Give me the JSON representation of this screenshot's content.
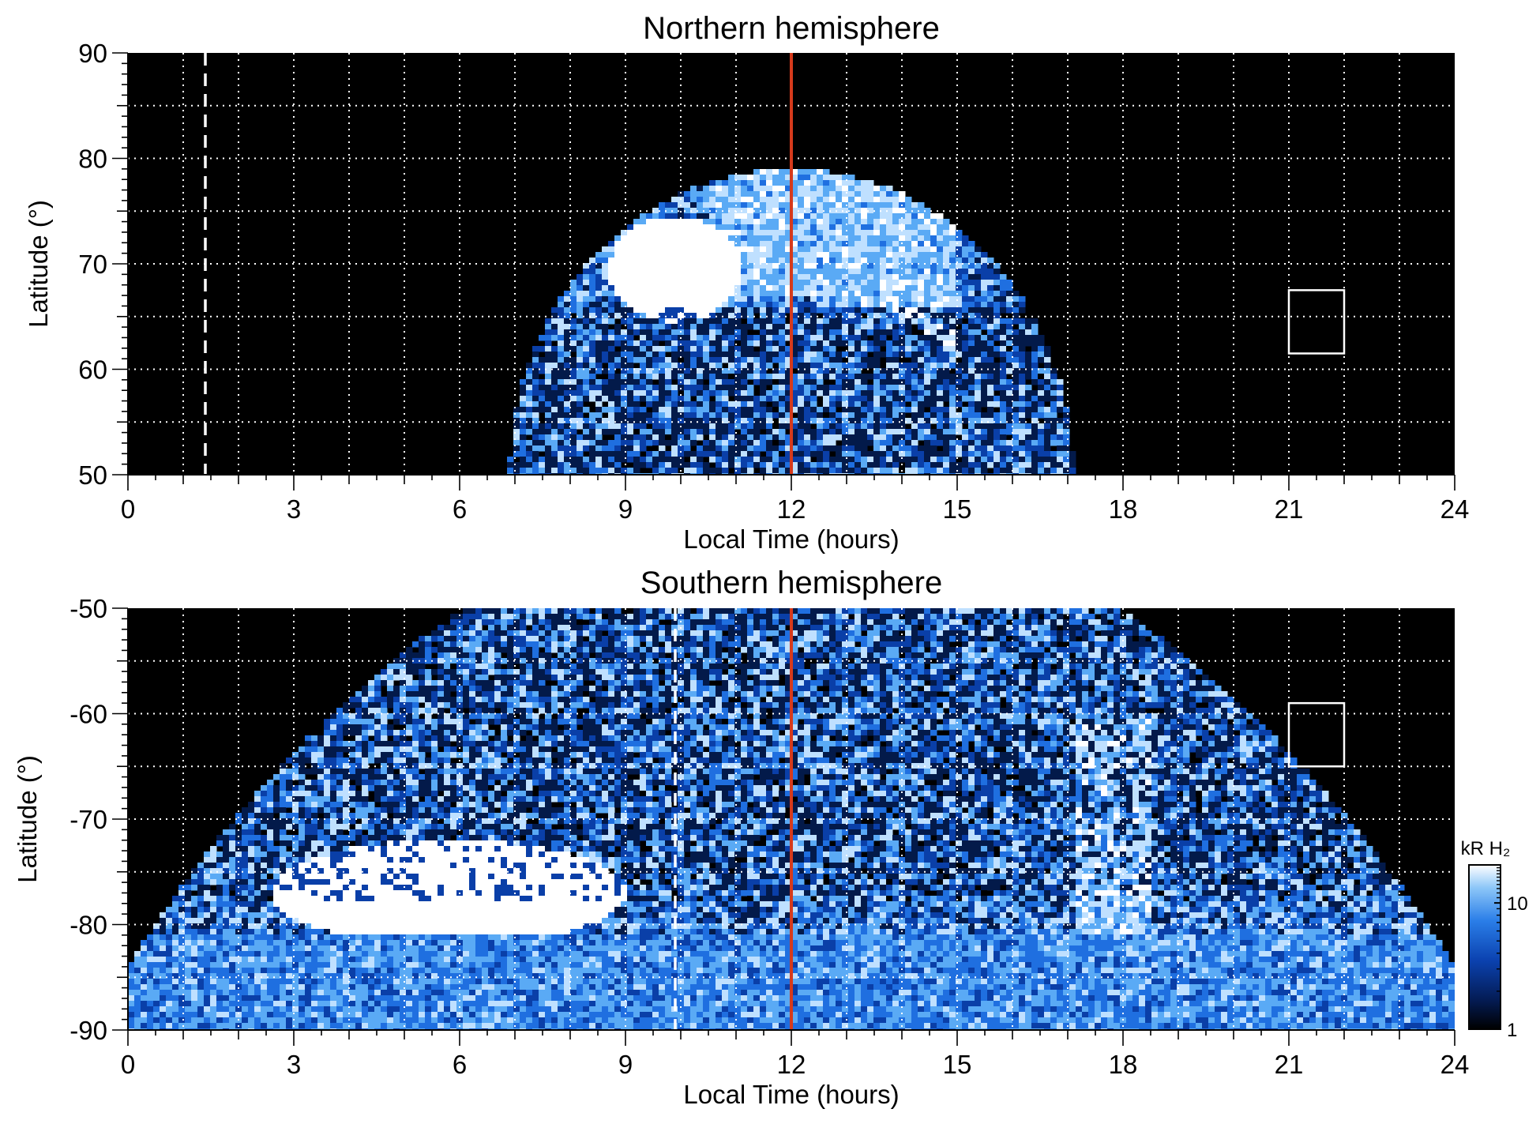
{
  "chart_data": [
    {
      "type": "heatmap",
      "title": "Northern hemisphere",
      "xlabel": "Local Time (hours)",
      "ylabel": "Latitude (°)",
      "xlim": [
        0,
        24
      ],
      "ylim": [
        50,
        90
      ],
      "xticks": [
        "0",
        "3",
        "6",
        "9",
        "12",
        "15",
        "18",
        "21",
        "24"
      ],
      "yticks": [
        "50",
        "60",
        "70",
        "80",
        "90"
      ],
      "grid": true,
      "grid_x_step": 1,
      "grid_y_step": 5,
      "colormap": [
        "#000000",
        "#031a4a",
        "#0a3fa8",
        "#1f6fe0",
        "#5aaaf5",
        "#bfe0ff",
        "#ffffff"
      ],
      "reference_line": {
        "x": 12,
        "color": "#d63a1c"
      },
      "dashed_line": {
        "x": 1.4,
        "color": "#ffffff"
      },
      "box": {
        "x": [
          21,
          22
        ],
        "y": [
          61.5,
          67.5
        ]
      },
      "emission_region": {
        "lt_min": 7,
        "lt_max": 17.2,
        "peak_lat": 79
      },
      "bright_spot": {
        "lt": 9.9,
        "lat": 69.5
      }
    },
    {
      "type": "heatmap",
      "title": "Southern hemisphere",
      "xlabel": "Local Time (hours)",
      "ylabel": "Latitude (°)",
      "xlim": [
        0,
        24
      ],
      "ylim": [
        -90,
        -50
      ],
      "xticks": [
        "0",
        "3",
        "6",
        "9",
        "12",
        "15",
        "18",
        "21",
        "24"
      ],
      "yticks": [
        "-90",
        "-80",
        "-70",
        "-60",
        "-50"
      ],
      "grid": true,
      "grid_x_step": 1,
      "grid_y_step": 5,
      "reference_line": {
        "x": 12,
        "color": "#d63a1c"
      },
      "dashed_line": {
        "x": 9.9,
        "color": "#ffffff"
      },
      "box": {
        "x": [
          21,
          22
        ],
        "y": [
          -65,
          -59
        ]
      },
      "bright_spot": {
        "lt": 5.8,
        "lat": -77
      },
      "colorbar": {
        "label": "kR H₂",
        "ticks": [
          "1",
          "10"
        ],
        "scale": "log",
        "range": [
          1,
          20
        ]
      }
    }
  ]
}
